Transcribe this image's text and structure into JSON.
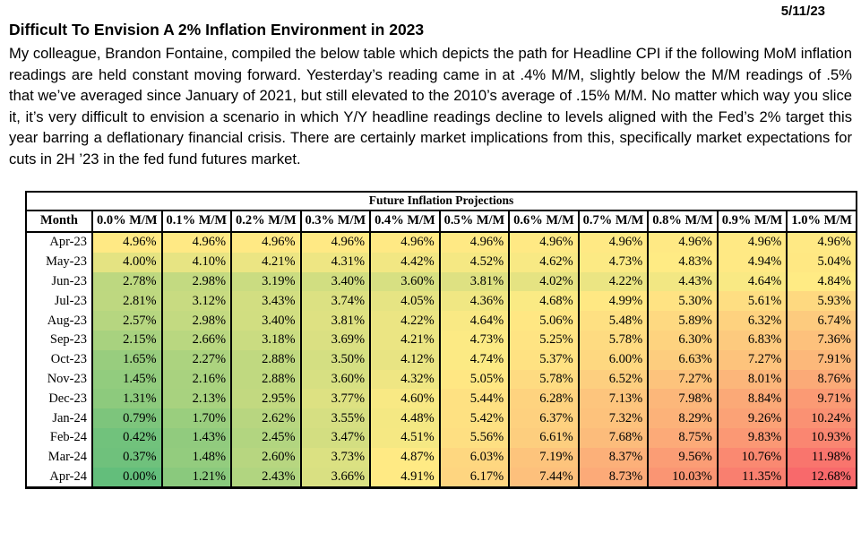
{
  "header": {
    "date": "5/11/23",
    "headline": "Difficult To Envision A 2% Inflation Environment in 2023",
    "body": "My colleague, Brandon Fontaine, compiled the below table which depicts the path for Headline CPI if the following MoM inflation readings are held constant moving forward. Yesterday’s reading came in at .4% M/M, slightly below the M/M readings of .5% that we’ve averaged since January of 2021, but still elevated to the 2010’s average of .15% M/M. No matter which way you slice it, it’s very difficult to envision a scenario in which Y/Y headline readings decline to levels aligned with the Fed’s 2% target this year barring a deflationary financial crisis. There are certainly market implications from this, specifically market expectations for cuts in 2H ’23 in the fed fund futures market."
  },
  "chart_data": {
    "type": "heatmap",
    "title": "Future Inflation Projections",
    "columns": [
      "Month",
      "0.0% M/M",
      "0.1% M/M",
      "0.2% M/M",
      "0.3% M/M",
      "0.4% M/M",
      "0.5% M/M",
      "0.6% M/M",
      "0.7% M/M",
      "0.8% M/M",
      "0.9% M/M",
      "1.0% M/M"
    ],
    "value_suffix": "%",
    "rows": [
      {
        "month": "Apr-23",
        "values": [
          4.96,
          4.96,
          4.96,
          4.96,
          4.96,
          4.96,
          4.96,
          4.96,
          4.96,
          4.96,
          4.96
        ]
      },
      {
        "month": "May-23",
        "values": [
          4.0,
          4.1,
          4.21,
          4.31,
          4.42,
          4.52,
          4.62,
          4.73,
          4.83,
          4.94,
          5.04
        ]
      },
      {
        "month": "Jun-23",
        "values": [
          2.78,
          2.98,
          3.19,
          3.4,
          3.6,
          3.81,
          4.02,
          4.22,
          4.43,
          4.64,
          4.84
        ]
      },
      {
        "month": "Jul-23",
        "values": [
          2.81,
          3.12,
          3.43,
          3.74,
          4.05,
          4.36,
          4.68,
          4.99,
          5.3,
          5.61,
          5.93
        ]
      },
      {
        "month": "Aug-23",
        "values": [
          2.57,
          2.98,
          3.4,
          3.81,
          4.22,
          4.64,
          5.06,
          5.48,
          5.89,
          6.32,
          6.74
        ]
      },
      {
        "month": "Sep-23",
        "values": [
          2.15,
          2.66,
          3.18,
          3.69,
          4.21,
          4.73,
          5.25,
          5.78,
          6.3,
          6.83,
          7.36
        ]
      },
      {
        "month": "Oct-23",
        "values": [
          1.65,
          2.27,
          2.88,
          3.5,
          4.12,
          4.74,
          5.37,
          6.0,
          6.63,
          7.27,
          7.91
        ]
      },
      {
        "month": "Nov-23",
        "values": [
          1.45,
          2.16,
          2.88,
          3.6,
          4.32,
          5.05,
          5.78,
          6.52,
          7.27,
          8.01,
          8.76
        ]
      },
      {
        "month": "Dec-23",
        "values": [
          1.31,
          2.13,
          2.95,
          3.77,
          4.6,
          5.44,
          6.28,
          7.13,
          7.98,
          8.84,
          9.71
        ]
      },
      {
        "month": "Jan-24",
        "values": [
          0.79,
          1.7,
          2.62,
          3.55,
          4.48,
          5.42,
          6.37,
          7.32,
          8.29,
          9.26,
          10.24
        ]
      },
      {
        "month": "Feb-24",
        "values": [
          0.42,
          1.43,
          2.45,
          3.47,
          4.51,
          5.56,
          6.61,
          7.68,
          8.75,
          9.83,
          10.93
        ]
      },
      {
        "month": "Mar-24",
        "values": [
          0.37,
          1.48,
          2.6,
          3.73,
          4.87,
          6.03,
          7.19,
          8.37,
          9.56,
          10.76,
          11.98
        ]
      },
      {
        "month": "Apr-24",
        "values": [
          0.0,
          1.21,
          2.43,
          3.66,
          4.91,
          6.17,
          7.44,
          8.73,
          10.03,
          11.35,
          12.68
        ]
      }
    ],
    "colorscale": {
      "min_value": 0.0,
      "mid_value": 4.83,
      "max_value": 12.68,
      "min_color": "#63BE7B",
      "mid_color": "#FFEB84",
      "max_color": "#F8696B"
    }
  }
}
